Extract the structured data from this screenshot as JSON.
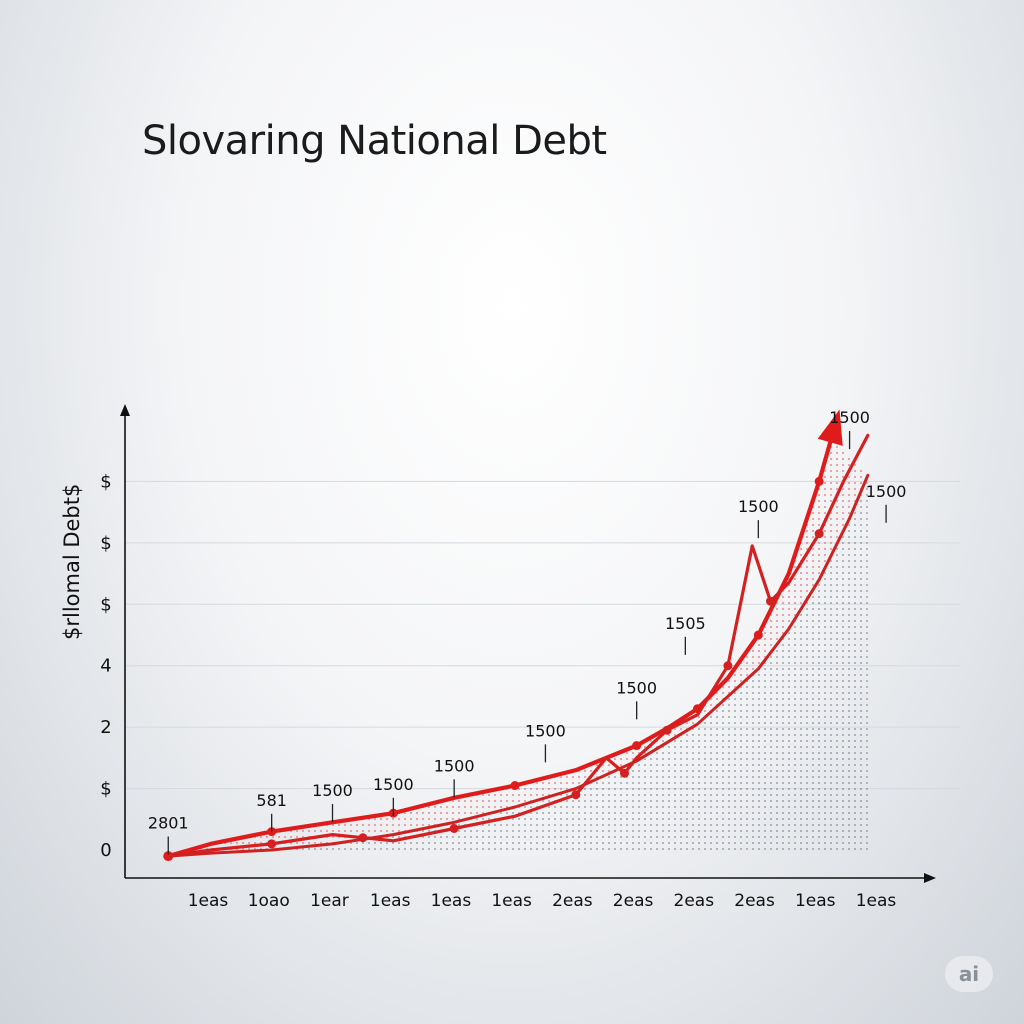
{
  "chart_data": {
    "type": "line",
    "title": "Slovaring National Debt",
    "ylabel": "$rllomal Debt$",
    "xlabel": "",
    "y_ticks": [
      "0",
      "$",
      "2",
      "4",
      "$",
      "$",
      "$"
    ],
    "y_tick_values": [
      0,
      1,
      2,
      3,
      4,
      5,
      6
    ],
    "x_tick_labels": [
      "1eas",
      "1oao",
      "1ear",
      "1eas",
      "1eas",
      "1eas",
      "2eas",
      "2eas",
      "2eas",
      "2eas",
      "1eas",
      "1eas"
    ],
    "ylim": [
      0,
      7
    ],
    "xlim": [
      0,
      12
    ],
    "grid": true,
    "series": [
      {
        "name": "series-1",
        "color": "#e01b1b",
        "arrow": true,
        "points": [
          [
            0.3,
            -0.1
          ],
          [
            1.0,
            0.1
          ],
          [
            2.0,
            0.3
          ],
          [
            3.0,
            0.45
          ],
          [
            4.0,
            0.6
          ],
          [
            5.0,
            0.85
          ],
          [
            6.0,
            1.05
          ],
          [
            7.0,
            1.3
          ],
          [
            8.0,
            1.7
          ],
          [
            8.5,
            1.98
          ],
          [
            9.0,
            2.3
          ],
          [
            9.5,
            2.8
          ],
          [
            10.0,
            3.5
          ],
          [
            10.5,
            4.5
          ],
          [
            11.0,
            6.0
          ],
          [
            11.2,
            6.7
          ]
        ]
      },
      {
        "name": "series-2",
        "color": "#d42020",
        "arrow": false,
        "points": [
          [
            0.3,
            -0.1
          ],
          [
            1.0,
            0.0
          ],
          [
            2.0,
            0.1
          ],
          [
            3.0,
            0.25
          ],
          [
            3.5,
            0.2
          ],
          [
            4.0,
            0.15
          ],
          [
            5.0,
            0.35
          ],
          [
            6.0,
            0.55
          ],
          [
            7.0,
            0.9
          ],
          [
            7.5,
            1.5
          ],
          [
            7.8,
            1.25
          ],
          [
            8.0,
            1.5
          ],
          [
            8.5,
            1.95
          ],
          [
            9.0,
            2.2
          ],
          [
            9.5,
            3.0
          ],
          [
            9.9,
            4.95
          ],
          [
            10.2,
            4.05
          ],
          [
            10.5,
            4.35
          ],
          [
            11.0,
            5.15
          ],
          [
            11.4,
            6.0
          ],
          [
            11.8,
            6.75
          ]
        ]
      },
      {
        "name": "series-3",
        "color": "#cc2222",
        "arrow": false,
        "points": [
          [
            0.3,
            -0.1
          ],
          [
            1.0,
            -0.05
          ],
          [
            2.0,
            0.0
          ],
          [
            3.0,
            0.1
          ],
          [
            4.0,
            0.25
          ],
          [
            5.0,
            0.45
          ],
          [
            6.0,
            0.7
          ],
          [
            7.0,
            1.0
          ],
          [
            8.0,
            1.45
          ],
          [
            9.0,
            2.05
          ],
          [
            10.0,
            2.95
          ],
          [
            10.5,
            3.6
          ],
          [
            11.0,
            4.4
          ],
          [
            11.5,
            5.4
          ],
          [
            11.8,
            6.1
          ]
        ]
      }
    ],
    "data_labels": [
      {
        "text": "2801",
        "x": 0.3,
        "y": 0.35
      },
      {
        "text": "581",
        "x": 2.0,
        "y": 0.72
      },
      {
        "text": "1500",
        "x": 3.0,
        "y": 0.88
      },
      {
        "text": "1500",
        "x": 4.0,
        "y": 0.98
      },
      {
        "text": "1500",
        "x": 5.0,
        "y": 1.28
      },
      {
        "text": "1500",
        "x": 6.5,
        "y": 1.85
      },
      {
        "text": "1500",
        "x": 8.0,
        "y": 2.55
      },
      {
        "text": "1505",
        "x": 8.8,
        "y": 3.6
      },
      {
        "text": "1500",
        "x": 10.0,
        "y": 5.5
      },
      {
        "text": "1500",
        "x": 11.5,
        "y": 6.95
      },
      {
        "text": "1500",
        "x": 12.1,
        "y": 5.75
      }
    ],
    "legend": null
  },
  "badge": "ai"
}
